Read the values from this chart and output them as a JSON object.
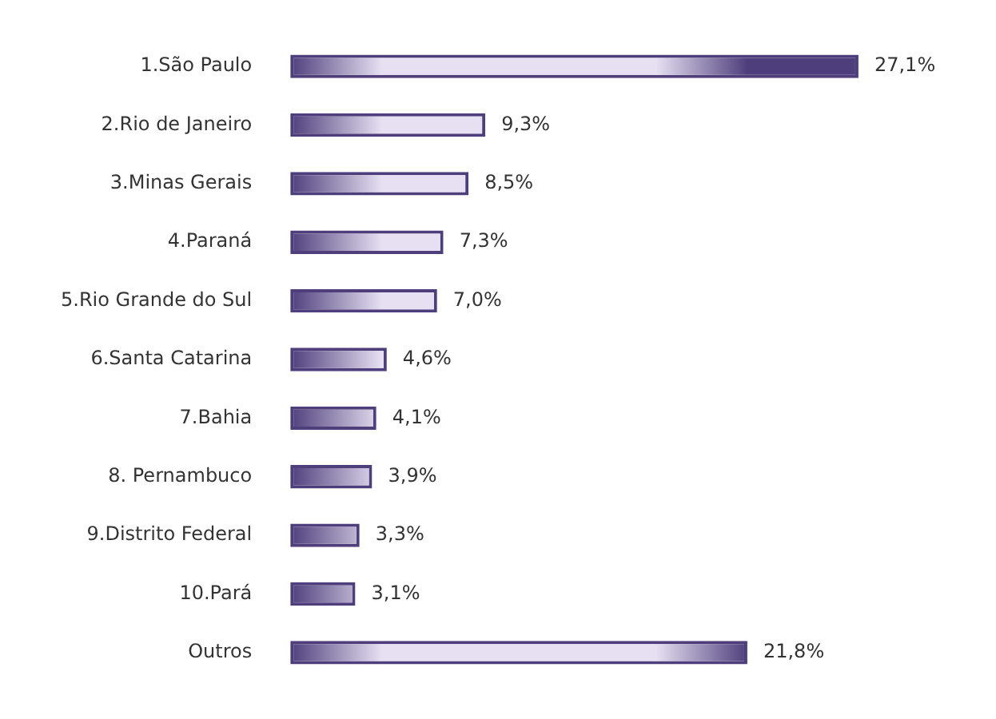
{
  "chart_data": {
    "type": "bar",
    "orientation": "horizontal",
    "categories": [
      "1.São Paulo",
      "2.Rio de Janeiro",
      "3.Minas Gerais",
      "4.Paraná",
      "5.Rio Grande do Sul",
      "6.Santa Catarina",
      "7.Bahia",
      "8. Pernambuco",
      "9.Distrito Federal",
      "10.Pará",
      "Outros"
    ],
    "values": [
      27.1,
      9.3,
      8.5,
      7.3,
      7.0,
      4.6,
      4.1,
      3.9,
      3.3,
      3.1,
      21.8
    ],
    "value_labels": [
      "27,1%",
      "9,3%",
      "8,5%",
      "7,3%",
      "7,0%",
      "4,6%",
      "4,1%",
      "3,9%",
      "3,3%",
      "3,1%",
      "21,8%"
    ],
    "color": "#4e3f7c",
    "legend": false
  }
}
